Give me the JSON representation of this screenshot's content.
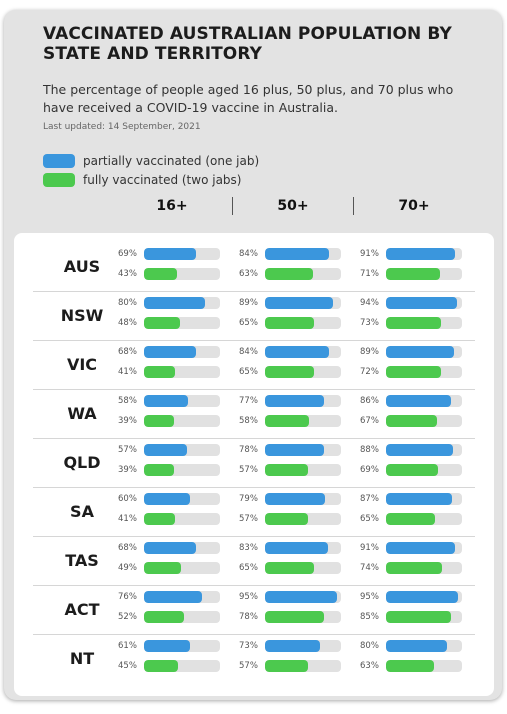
{
  "header": {
    "title": "VACCINATED AUSTRALIAN POPULATION BY STATE AND TERRITORY",
    "subtitle": "The percentage of people aged 16 plus, 50 plus, and 70 plus who have received a COVID-19 vaccine in Australia.",
    "last_updated": "Last updated: 14 September, 2021"
  },
  "colors": {
    "partial": "#3a96dd",
    "full": "#4cc94e",
    "track": "#e1e1e1"
  },
  "chart_data": {
    "type": "bar",
    "orientation": "horizontal",
    "legend": [
      {
        "key": "partial",
        "label": "partially vaccinated (one jab)"
      },
      {
        "key": "full",
        "label": "fully vaccinated (two jabs)"
      }
    ],
    "groups": [
      "16+",
      "50+",
      "70+"
    ],
    "xlim": [
      0,
      100
    ],
    "unit": "%",
    "states": [
      {
        "name": "AUS",
        "partial": [
          69,
          84,
          91
        ],
        "full": [
          43,
          63,
          71
        ]
      },
      {
        "name": "NSW",
        "partial": [
          80,
          89,
          94
        ],
        "full": [
          48,
          65,
          73
        ]
      },
      {
        "name": "VIC",
        "partial": [
          68,
          84,
          89
        ],
        "full": [
          41,
          65,
          72
        ]
      },
      {
        "name": "WA",
        "partial": [
          58,
          77,
          86
        ],
        "full": [
          39,
          58,
          67
        ]
      },
      {
        "name": "QLD",
        "partial": [
          57,
          78,
          88
        ],
        "full": [
          39,
          57,
          69
        ]
      },
      {
        "name": "SA",
        "partial": [
          60,
          79,
          87
        ],
        "full": [
          41,
          57,
          65
        ]
      },
      {
        "name": "TAS",
        "partial": [
          68,
          83,
          91
        ],
        "full": [
          49,
          65,
          74
        ]
      },
      {
        "name": "ACT",
        "partial": [
          76,
          95,
          95
        ],
        "full": [
          52,
          78,
          85
        ]
      },
      {
        "name": "NT",
        "partial": [
          61,
          73,
          80
        ],
        "full": [
          45,
          57,
          63
        ]
      }
    ]
  }
}
